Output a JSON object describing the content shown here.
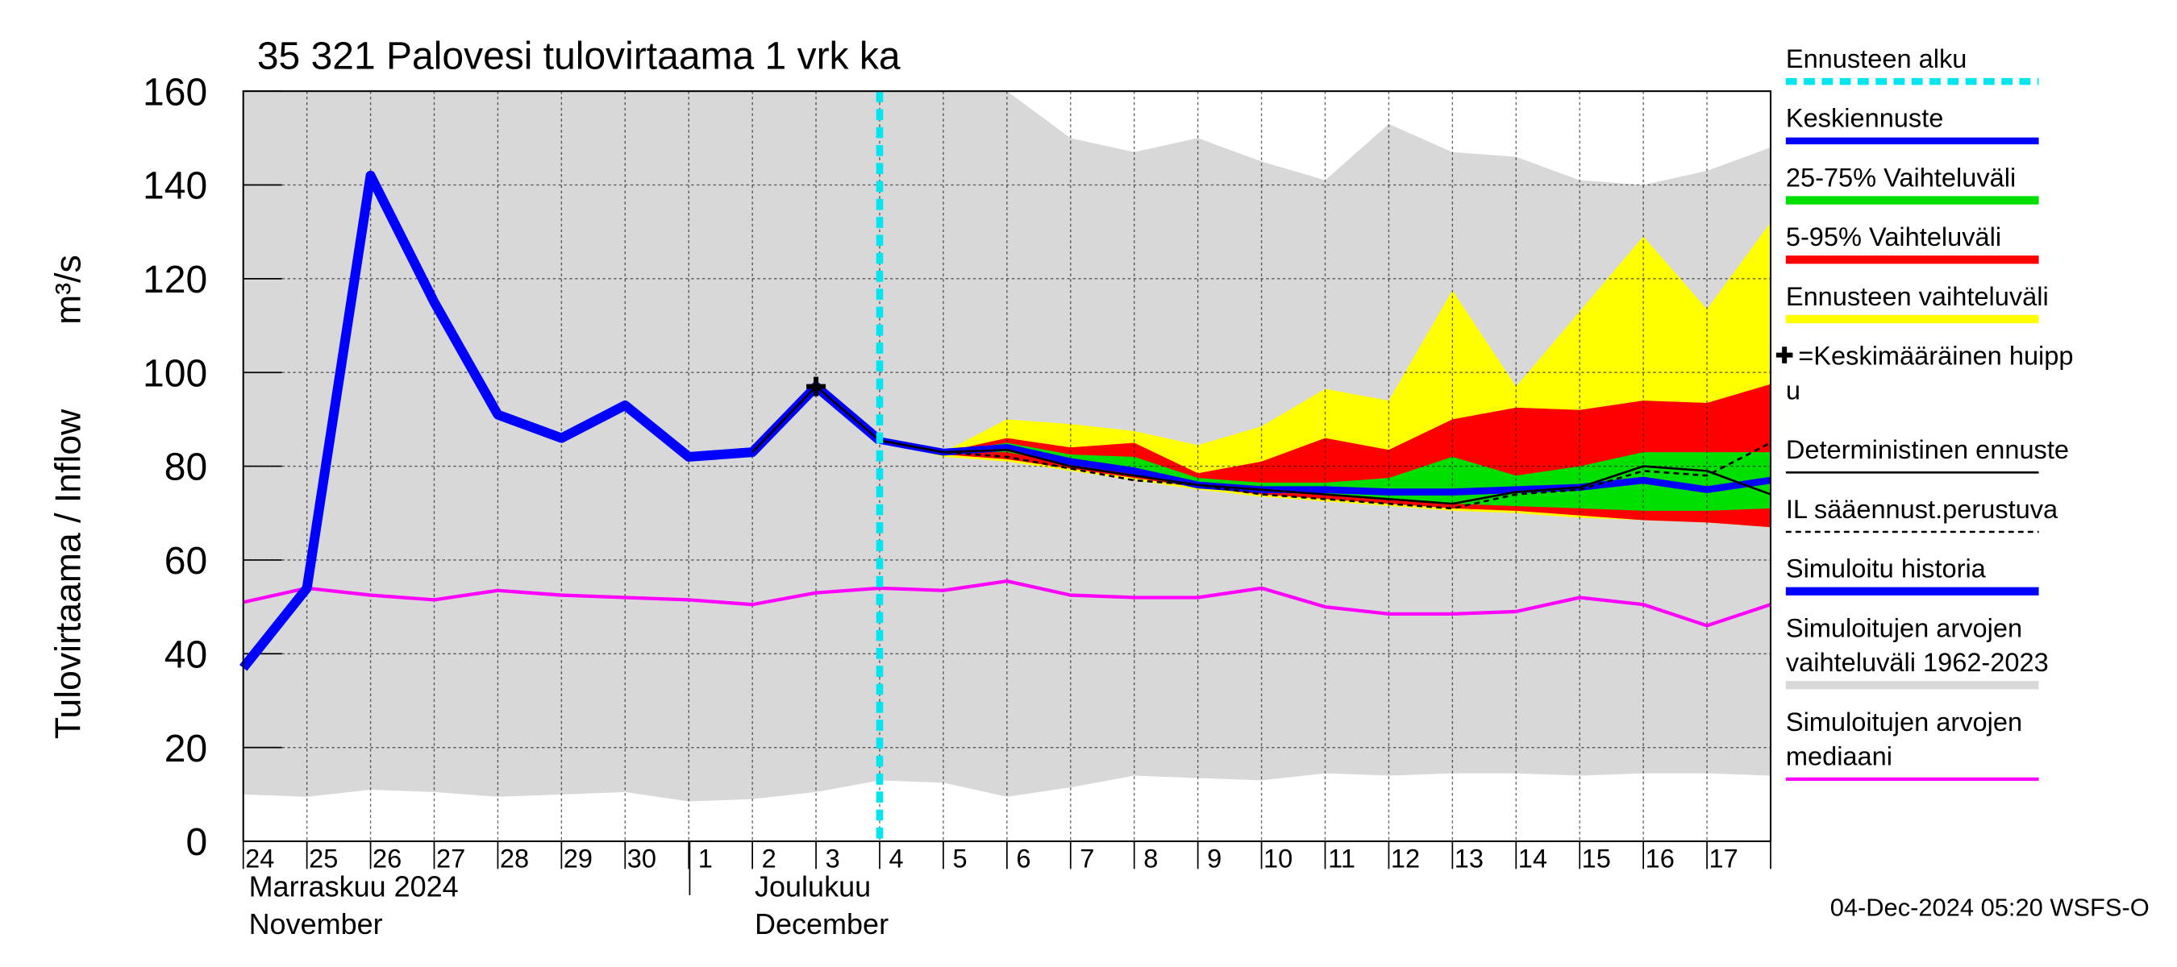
{
  "chart_data": {
    "type": "line",
    "title": "35 321 Palovesi tulovirtaama 1 vrk ka",
    "y_label": "Tulovirtaama / Inflow",
    "y_unit": "m³/s",
    "month_labels": [
      "Marraskuu 2024",
      "November",
      "Joulukuu",
      "December"
    ],
    "footer": "04-Dec-2024 05:20 WSFS-O",
    "categories": [
      "24",
      "25",
      "26",
      "27",
      "28",
      "29",
      "30",
      "1",
      "2",
      "3",
      "4",
      "5",
      "6",
      "7",
      "8",
      "9",
      "10",
      "11",
      "12",
      "13",
      "14",
      "15",
      "16",
      "17",
      null
    ],
    "ylim": [
      0,
      160
    ],
    "yticks": [
      0,
      20,
      40,
      60,
      80,
      100,
      120,
      140,
      160
    ],
    "grid": true,
    "forecast_start_index": 10,
    "bands": [
      {
        "color": "#d8d8d8",
        "upper": [
          160,
          160,
          160,
          160,
          160,
          160,
          160,
          160,
          160,
          160,
          160,
          160,
          160,
          150,
          147,
          150,
          145,
          141,
          153,
          147,
          146,
          141,
          140,
          143,
          148
        ],
        "lower": [
          10,
          9.5,
          11,
          10.5,
          9.5,
          10,
          10.5,
          8.5,
          9,
          10.5,
          13,
          12.5,
          9.5,
          11.5,
          14,
          13.5,
          13,
          14.5,
          14,
          14.5,
          14.5,
          14,
          14.5,
          14.5,
          14
        ]
      },
      {
        "color": "#ffff00",
        "upper": [
          null,
          null,
          null,
          null,
          null,
          null,
          null,
          null,
          null,
          null,
          85.5,
          83,
          90,
          89,
          87.5,
          84.5,
          88.5,
          96.5,
          94,
          117.5,
          97,
          113,
          129,
          113.5,
          132
        ],
        "lower": [
          null,
          null,
          null,
          null,
          null,
          null,
          null,
          null,
          null,
          null,
          85.5,
          82,
          81,
          79,
          77,
          75,
          73.5,
          72.5,
          71.5,
          70.5,
          70,
          69,
          68.5,
          68,
          67
        ]
      },
      {
        "color": "#ff0000",
        "upper": [
          null,
          null,
          null,
          null,
          null,
          null,
          null,
          null,
          null,
          null,
          85.5,
          83,
          86,
          84,
          85,
          78.5,
          81,
          86,
          83.5,
          90,
          92.5,
          92,
          94,
          93.5,
          97.5
        ],
        "lower": [
          null,
          null,
          null,
          null,
          null,
          null,
          null,
          null,
          null,
          null,
          85.5,
          82.5,
          81.5,
          79.5,
          77.5,
          75.5,
          74,
          73,
          72,
          71,
          70.5,
          69.5,
          68.5,
          68,
          67
        ]
      },
      {
        "color": "#00e000",
        "upper": [
          null,
          null,
          null,
          null,
          null,
          null,
          null,
          null,
          null,
          null,
          85.5,
          83,
          85,
          82.5,
          82,
          77.5,
          76.5,
          76.5,
          77.5,
          82,
          78,
          80,
          83,
          83,
          83
        ],
        "lower": [
          null,
          null,
          null,
          null,
          null,
          null,
          null,
          null,
          null,
          null,
          85.5,
          83,
          83,
          80.5,
          78.5,
          76,
          74.5,
          74,
          73,
          72,
          71.5,
          71,
          70.5,
          70.5,
          71
        ]
      }
    ],
    "series": [
      {
        "color": "#ff00ff",
        "width": 2.5,
        "values": [
          51,
          54,
          52.5,
          51.5,
          53.5,
          52.5,
          52,
          51.5,
          50.5,
          53,
          54,
          53.5,
          55.5,
          52.5,
          52,
          52,
          54,
          50,
          48.5,
          48.5,
          49,
          52,
          50.5,
          46,
          50.5
        ]
      },
      {
        "color": "#0000ff",
        "width": 7,
        "values": [
          37,
          54,
          142,
          115,
          91,
          86,
          93,
          82,
          83,
          97,
          85.5,
          null,
          null,
          null,
          null,
          null,
          null,
          null,
          null,
          null,
          null,
          null,
          null,
          null,
          null
        ]
      },
      {
        "color": "#0000ff",
        "width": 5,
        "values": [
          null,
          null,
          null,
          null,
          null,
          null,
          null,
          null,
          null,
          null,
          85.5,
          83,
          84,
          81,
          79,
          76,
          75,
          75,
          74.5,
          74.5,
          75,
          75.5,
          77,
          75,
          77
        ]
      },
      {
        "color": "#000000",
        "width": 1.5,
        "values": [
          null,
          null,
          null,
          null,
          null,
          null,
          null,
          null,
          83,
          97,
          85.5,
          83,
          83.5,
          80,
          78,
          76,
          75,
          74,
          73,
          72,
          74.5,
          75.5,
          80,
          79,
          74
        ]
      },
      {
        "color": "#000000",
        "width": 1.5,
        "dash": "4 3",
        "values": [
          null,
          null,
          null,
          null,
          null,
          null,
          null,
          null,
          null,
          null,
          85.5,
          83,
          82,
          79.5,
          77,
          76,
          74,
          73,
          72,
          71,
          74,
          75,
          79,
          78,
          85
        ]
      },
      {
        "color": "#000000",
        "marker": "plus",
        "values": [
          null,
          null,
          null,
          null,
          null,
          null,
          null,
          null,
          null,
          97,
          null,
          null,
          null,
          null,
          null,
          null,
          null,
          null,
          null,
          null,
          null,
          null,
          null,
          null,
          null
        ]
      }
    ],
    "legend": [
      {
        "lines": [
          "Ennusteen alku"
        ],
        "color": "#00e5ee",
        "style": "dashed",
        "width": 5
      },
      {
        "lines": [
          "Keskiennuste"
        ],
        "color": "#0000ff",
        "style": "solid",
        "width": 5
      },
      {
        "lines": [
          "25-75% Vaihteluväli"
        ],
        "color": "#00e000",
        "style": "solid",
        "width": 6
      },
      {
        "lines": [
          "5-95% Vaihteluväli"
        ],
        "color": "#ff0000",
        "style": "solid",
        "width": 6
      },
      {
        "lines": [
          "Ennusteen vaihteluväli"
        ],
        "color": "#ffff00",
        "style": "solid",
        "width": 6
      },
      {
        "lines": [
          "=Keskimääräinen huipp",
          "u"
        ],
        "color": "#000000",
        "style": "marker",
        "width": 0
      },
      {
        "lines": [
          "Deterministinen ennuste"
        ],
        "color": "#000000",
        "style": "solid",
        "width": 1.5
      },
      {
        "lines": [
          "IL sääennust.perustuva"
        ],
        "color": "#000000",
        "style": "dotted",
        "width": 1.5
      },
      {
        "lines": [
          "Simuloitu historia"
        ],
        "color": "#0000ff",
        "style": "solid",
        "width": 6
      },
      {
        "lines": [
          "Simuloitujen arvojen",
          "vaihteluväli 1962-2023"
        ],
        "color": "#d8d8d8",
        "style": "solid",
        "width": 6
      },
      {
        "lines": [
          "Simuloitujen arvojen",
          "mediaani"
        ],
        "color": "#ff00ff",
        "style": "solid",
        "width": 2.5
      }
    ]
  }
}
